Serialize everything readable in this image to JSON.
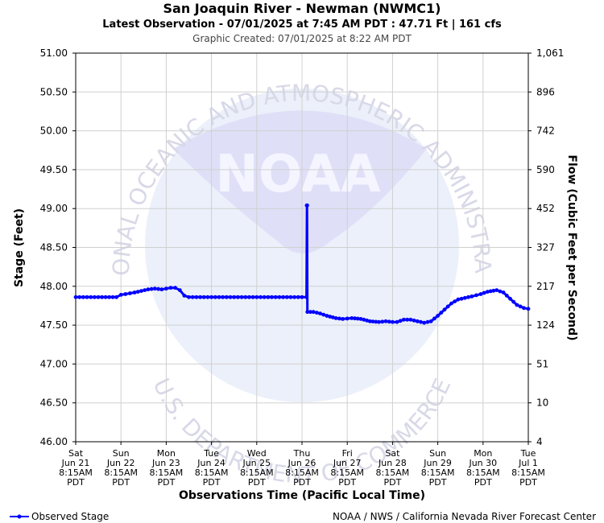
{
  "header": {
    "title": "San Joaquin River - Newman (NWMC1)",
    "subtitle": "Latest Observation - 07/01/2025 at 7:45 AM PDT : 47.71 Ft | 161 cfs",
    "created": "Graphic Created: 07/01/2025 at 8:22 AM PDT"
  },
  "watermark": {
    "logo_text": "NOAA",
    "top_arc": "NATIONAL OCEANIC AND ATMOSPHERIC ADMINISTRATION",
    "bottom_arc": "U.S. DEPARTMENT OF COMMERCE"
  },
  "footer": {
    "legend_label": "Observed Stage",
    "credit": "NOAA / NWS / California Nevada River Forecast Center"
  },
  "colors": {
    "series": "#0000ff",
    "grid": "#d0d0d0",
    "watermark": "#e4e6f6"
  },
  "chart_data": {
    "type": "line",
    "xlabel": "Observations Time (Pacific Local Time)",
    "ylabel": "Stage (Feet)",
    "y2label": "Flow (Cubic Feet per Second)",
    "ylim": [
      46.0,
      51.0
    ],
    "xlim": [
      0,
      10
    ],
    "grid": true,
    "legend": "bottom-left",
    "y_ticks": [
      "46.00",
      "46.50",
      "47.00",
      "47.50",
      "48.00",
      "48.50",
      "49.00",
      "49.50",
      "50.00",
      "50.50",
      "51.00"
    ],
    "y2_ticks": [
      "4",
      "10",
      "51",
      "124",
      "217",
      "327",
      "452",
      "590",
      "742",
      "896",
      "1,061"
    ],
    "x_ticks": [
      [
        "Sat",
        "Jun 21",
        "8:15AM",
        "PDT"
      ],
      [
        "Sun",
        "Jun 22",
        "8:15AM",
        "PDT"
      ],
      [
        "Mon",
        "Jun 23",
        "8:15AM",
        "PDT"
      ],
      [
        "Tue",
        "Jun 24",
        "8:15AM",
        "PDT"
      ],
      [
        "Wed",
        "Jun 25",
        "8:15AM",
        "PDT"
      ],
      [
        "Thu",
        "Jun 26",
        "8:15AM",
        "PDT"
      ],
      [
        "Fri",
        "Jun 27",
        "8:15AM",
        "PDT"
      ],
      [
        "Sat",
        "Jun 28",
        "8:15AM",
        "PDT"
      ],
      [
        "Sun",
        "Jun 29",
        "8:15AM",
        "PDT"
      ],
      [
        "Mon",
        "Jun 30",
        "8:15AM",
        "PDT"
      ],
      [
        "Tue",
        "Jul 1",
        "8:15AM",
        "PDT"
      ]
    ],
    "series": [
      {
        "name": "Observed Stage",
        "points": [
          [
            0.0,
            47.86
          ],
          [
            0.5,
            47.86
          ],
          [
            0.9,
            47.86
          ],
          [
            1.0,
            47.89
          ],
          [
            1.1,
            47.9
          ],
          [
            1.3,
            47.92
          ],
          [
            1.45,
            47.94
          ],
          [
            1.6,
            47.96
          ],
          [
            1.75,
            47.97
          ],
          [
            1.9,
            47.96
          ],
          [
            2.0,
            47.97
          ],
          [
            2.1,
            47.98
          ],
          [
            2.2,
            47.98
          ],
          [
            2.3,
            47.95
          ],
          [
            2.4,
            47.88
          ],
          [
            2.5,
            47.86
          ],
          [
            3.0,
            47.86
          ],
          [
            3.5,
            47.86
          ],
          [
            4.0,
            47.86
          ],
          [
            4.5,
            47.86
          ],
          [
            5.0,
            47.86
          ],
          [
            5.1,
            47.86
          ],
          [
            5.11,
            49.04
          ],
          [
            5.12,
            47.67
          ],
          [
            5.25,
            47.67
          ],
          [
            5.4,
            47.65
          ],
          [
            5.55,
            47.62
          ],
          [
            5.75,
            47.59
          ],
          [
            5.9,
            47.58
          ],
          [
            6.1,
            47.59
          ],
          [
            6.3,
            47.58
          ],
          [
            6.5,
            47.55
          ],
          [
            6.7,
            47.54
          ],
          [
            6.85,
            47.55
          ],
          [
            7.0,
            47.54
          ],
          [
            7.1,
            47.54
          ],
          [
            7.25,
            47.57
          ],
          [
            7.4,
            47.57
          ],
          [
            7.55,
            47.55
          ],
          [
            7.7,
            47.53
          ],
          [
            7.85,
            47.55
          ],
          [
            8.0,
            47.62
          ],
          [
            8.15,
            47.7
          ],
          [
            8.3,
            47.78
          ],
          [
            8.45,
            47.83
          ],
          [
            8.6,
            47.85
          ],
          [
            8.75,
            47.87
          ],
          [
            8.95,
            47.9
          ],
          [
            9.1,
            47.93
          ],
          [
            9.3,
            47.95
          ],
          [
            9.45,
            47.92
          ],
          [
            9.6,
            47.84
          ],
          [
            9.75,
            47.76
          ],
          [
            9.9,
            47.72
          ],
          [
            10.0,
            47.71
          ]
        ]
      }
    ]
  }
}
